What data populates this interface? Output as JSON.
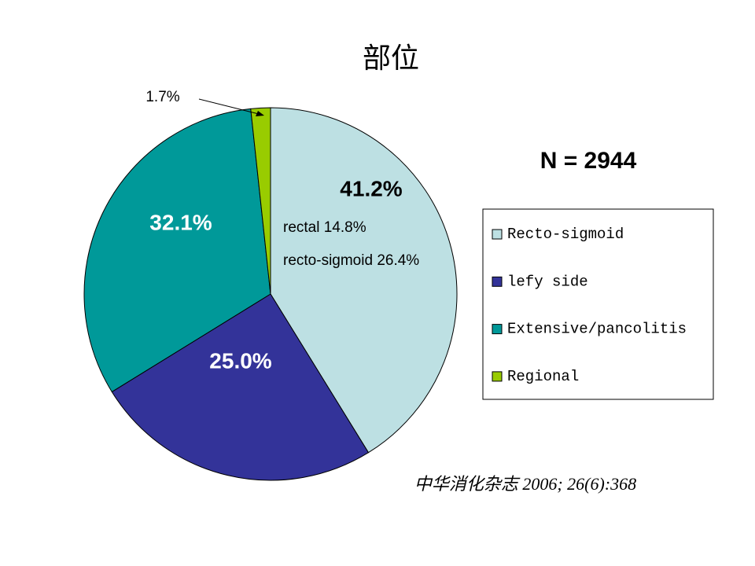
{
  "chart_data": {
    "type": "pie",
    "title": "部位",
    "categories": [
      "Recto-sigmoid",
      "lefy side",
      "Extensive/pancolitis",
      "Regional"
    ],
    "values": [
      41.2,
      25.0,
      32.1,
      1.7
    ],
    "value_labels": [
      "41.2%",
      "25.0%",
      "32.1%",
      "1.7%"
    ],
    "colors": [
      "#bde0e3",
      "#333399",
      "#009999",
      "#99cc00"
    ],
    "legend": "right",
    "annotations": [
      "N = 2944",
      "rectal 14.8%",
      "recto-sigmoid 26.4%",
      "中华消化杂志 2006; 26(6):368"
    ]
  }
}
